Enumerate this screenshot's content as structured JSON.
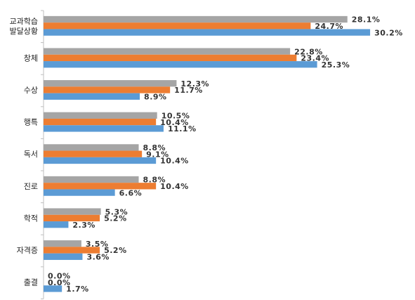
{
  "chart_data": {
    "type": "bar",
    "orientation": "horizontal",
    "categories": [
      [
        "교과학습",
        "발달상황"
      ],
      [
        "창체"
      ],
      [
        "수상"
      ],
      [
        "행특"
      ],
      [
        "독서"
      ],
      [
        "진로"
      ],
      [
        "학적"
      ],
      [
        "자격증"
      ],
      [
        "출결"
      ]
    ],
    "series": [
      {
        "color": "#A5A5A5",
        "values": [
          28.1,
          22.8,
          12.3,
          10.5,
          8.8,
          8.8,
          5.3,
          3.5,
          0.0
        ],
        "labels": [
          "28.1%",
          "22.8%",
          "12.3%",
          "10.5%",
          "8.8%",
          "8.8%",
          "5.3%",
          "3.5%",
          "0.0%"
        ]
      },
      {
        "color": "#ED7D31",
        "values": [
          24.7,
          23.4,
          11.7,
          10.4,
          9.1,
          10.4,
          5.2,
          5.2,
          0.0
        ],
        "labels": [
          "24.7%",
          "23.4%",
          "11.7%",
          "10.4%",
          "9.1%",
          "10.4%",
          "5.2%",
          "5.2%",
          "0.0%"
        ]
      },
      {
        "color": "#5B9BD5",
        "values": [
          30.2,
          25.3,
          8.9,
          11.1,
          10.4,
          6.6,
          2.3,
          3.6,
          1.7
        ],
        "labels": [
          "30.2%",
          "25.3%",
          "8.9%",
          "11.1%",
          "10.4%",
          "6.6%",
          "2.3%",
          "3.6%",
          "1.7%"
        ]
      }
    ],
    "xlim": [
      0,
      35
    ],
    "grid": false,
    "legend": "none"
  }
}
